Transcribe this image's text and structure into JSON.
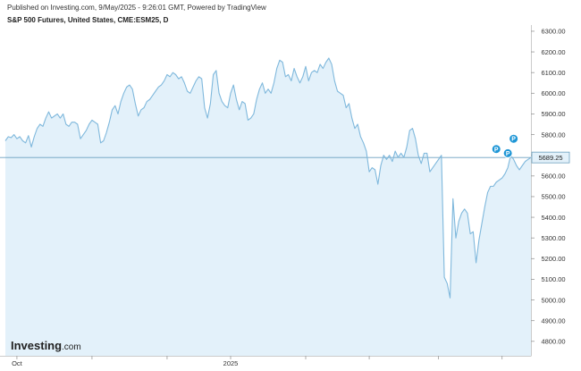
{
  "header": {
    "published": "Published on Investing.com, 9/May/2025 - 9:26:01 GMT, Powered by TradingView",
    "symbol": "S&P 500 Futures, United States, CME:ESM25, D"
  },
  "logo": {
    "brand": "Investing",
    "suffix": ".com"
  },
  "colors": {
    "line": "#7fb8dc",
    "fill": "#e3f1fa",
    "current_line": "#6a9fbf",
    "marker": "#1e96d6",
    "axis": "#cccccc"
  },
  "markers": [
    {
      "icon": "p-marker-icon",
      "label": "P",
      "x_index": 170,
      "y": 5730
    },
    {
      "icon": "p-marker-icon",
      "label": "P",
      "x_index": 174,
      "y": 5710
    },
    {
      "icon": "p-marker-icon",
      "label": "P",
      "x_index": 176,
      "y": 5780
    }
  ],
  "chart_data": {
    "type": "area",
    "x_tick_labels": [
      "Oct",
      "2025"
    ],
    "x_tick_index": [
      4,
      78
    ],
    "ylim": [
      4730,
      6330
    ],
    "y_ticks": [
      4800,
      4900,
      5000,
      5100,
      5200,
      5300,
      5400,
      5500,
      5600,
      5700,
      5800,
      5900,
      6000,
      6100,
      6200,
      6300
    ],
    "y_tick_labels": [
      "4800.00",
      "4900.00",
      "5000.00",
      "5100.00",
      "5200.00",
      "5300.00",
      "5400.00",
      "5500.00",
      "5600.00",
      "5700.00",
      "5800.00",
      "5900.00",
      "6000.00",
      "6100.00",
      "6200.00",
      "6300.00"
    ],
    "current_price": 5689.25,
    "current_price_label": "5689.25",
    "grid": false,
    "values": [
      5770,
      5790,
      5785,
      5800,
      5780,
      5790,
      5770,
      5760,
      5795,
      5740,
      5790,
      5830,
      5850,
      5840,
      5880,
      5910,
      5880,
      5890,
      5900,
      5880,
      5900,
      5850,
      5840,
      5860,
      5860,
      5850,
      5780,
      5800,
      5820,
      5850,
      5870,
      5860,
      5850,
      5760,
      5770,
      5810,
      5860,
      5920,
      5940,
      5900,
      5960,
      6000,
      6030,
      6040,
      6020,
      5950,
      5890,
      5920,
      5930,
      5960,
      5970,
      5990,
      6010,
      6030,
      6040,
      6060,
      6090,
      6080,
      6100,
      6090,
      6070,
      6080,
      6050,
      6010,
      6000,
      6030,
      6060,
      6080,
      6070,
      5930,
      5880,
      5950,
      6090,
      6110,
      6000,
      5960,
      5940,
      5930,
      6000,
      6040,
      5970,
      5920,
      5960,
      5950,
      5870,
      5880,
      5900,
      5970,
      6020,
      6050,
      6000,
      6020,
      6000,
      6050,
      6120,
      6160,
      6150,
      6080,
      6090,
      6060,
      6120,
      6080,
      6050,
      6080,
      6130,
      6060,
      6100,
      6110,
      6100,
      6140,
      6120,
      6150,
      6170,
      6140,
      6060,
      6010,
      6000,
      5990,
      5930,
      5950,
      5880,
      5830,
      5850,
      5790,
      5760,
      5720,
      5620,
      5640,
      5630,
      5560,
      5650,
      5700,
      5680,
      5700,
      5670,
      5720,
      5690,
      5710,
      5690,
      5740,
      5820,
      5830,
      5780,
      5700,
      5660,
      5710,
      5710,
      5620,
      5640,
      5660,
      5680,
      5700,
      5110,
      5080,
      5010,
      5490,
      5300,
      5380,
      5420,
      5440,
      5420,
      5320,
      5330,
      5180,
      5290,
      5370,
      5450,
      5520,
      5550,
      5550,
      5570,
      5580,
      5590,
      5610,
      5640,
      5700,
      5680,
      5650,
      5630,
      5650,
      5670,
      5680,
      5689.25
    ]
  }
}
